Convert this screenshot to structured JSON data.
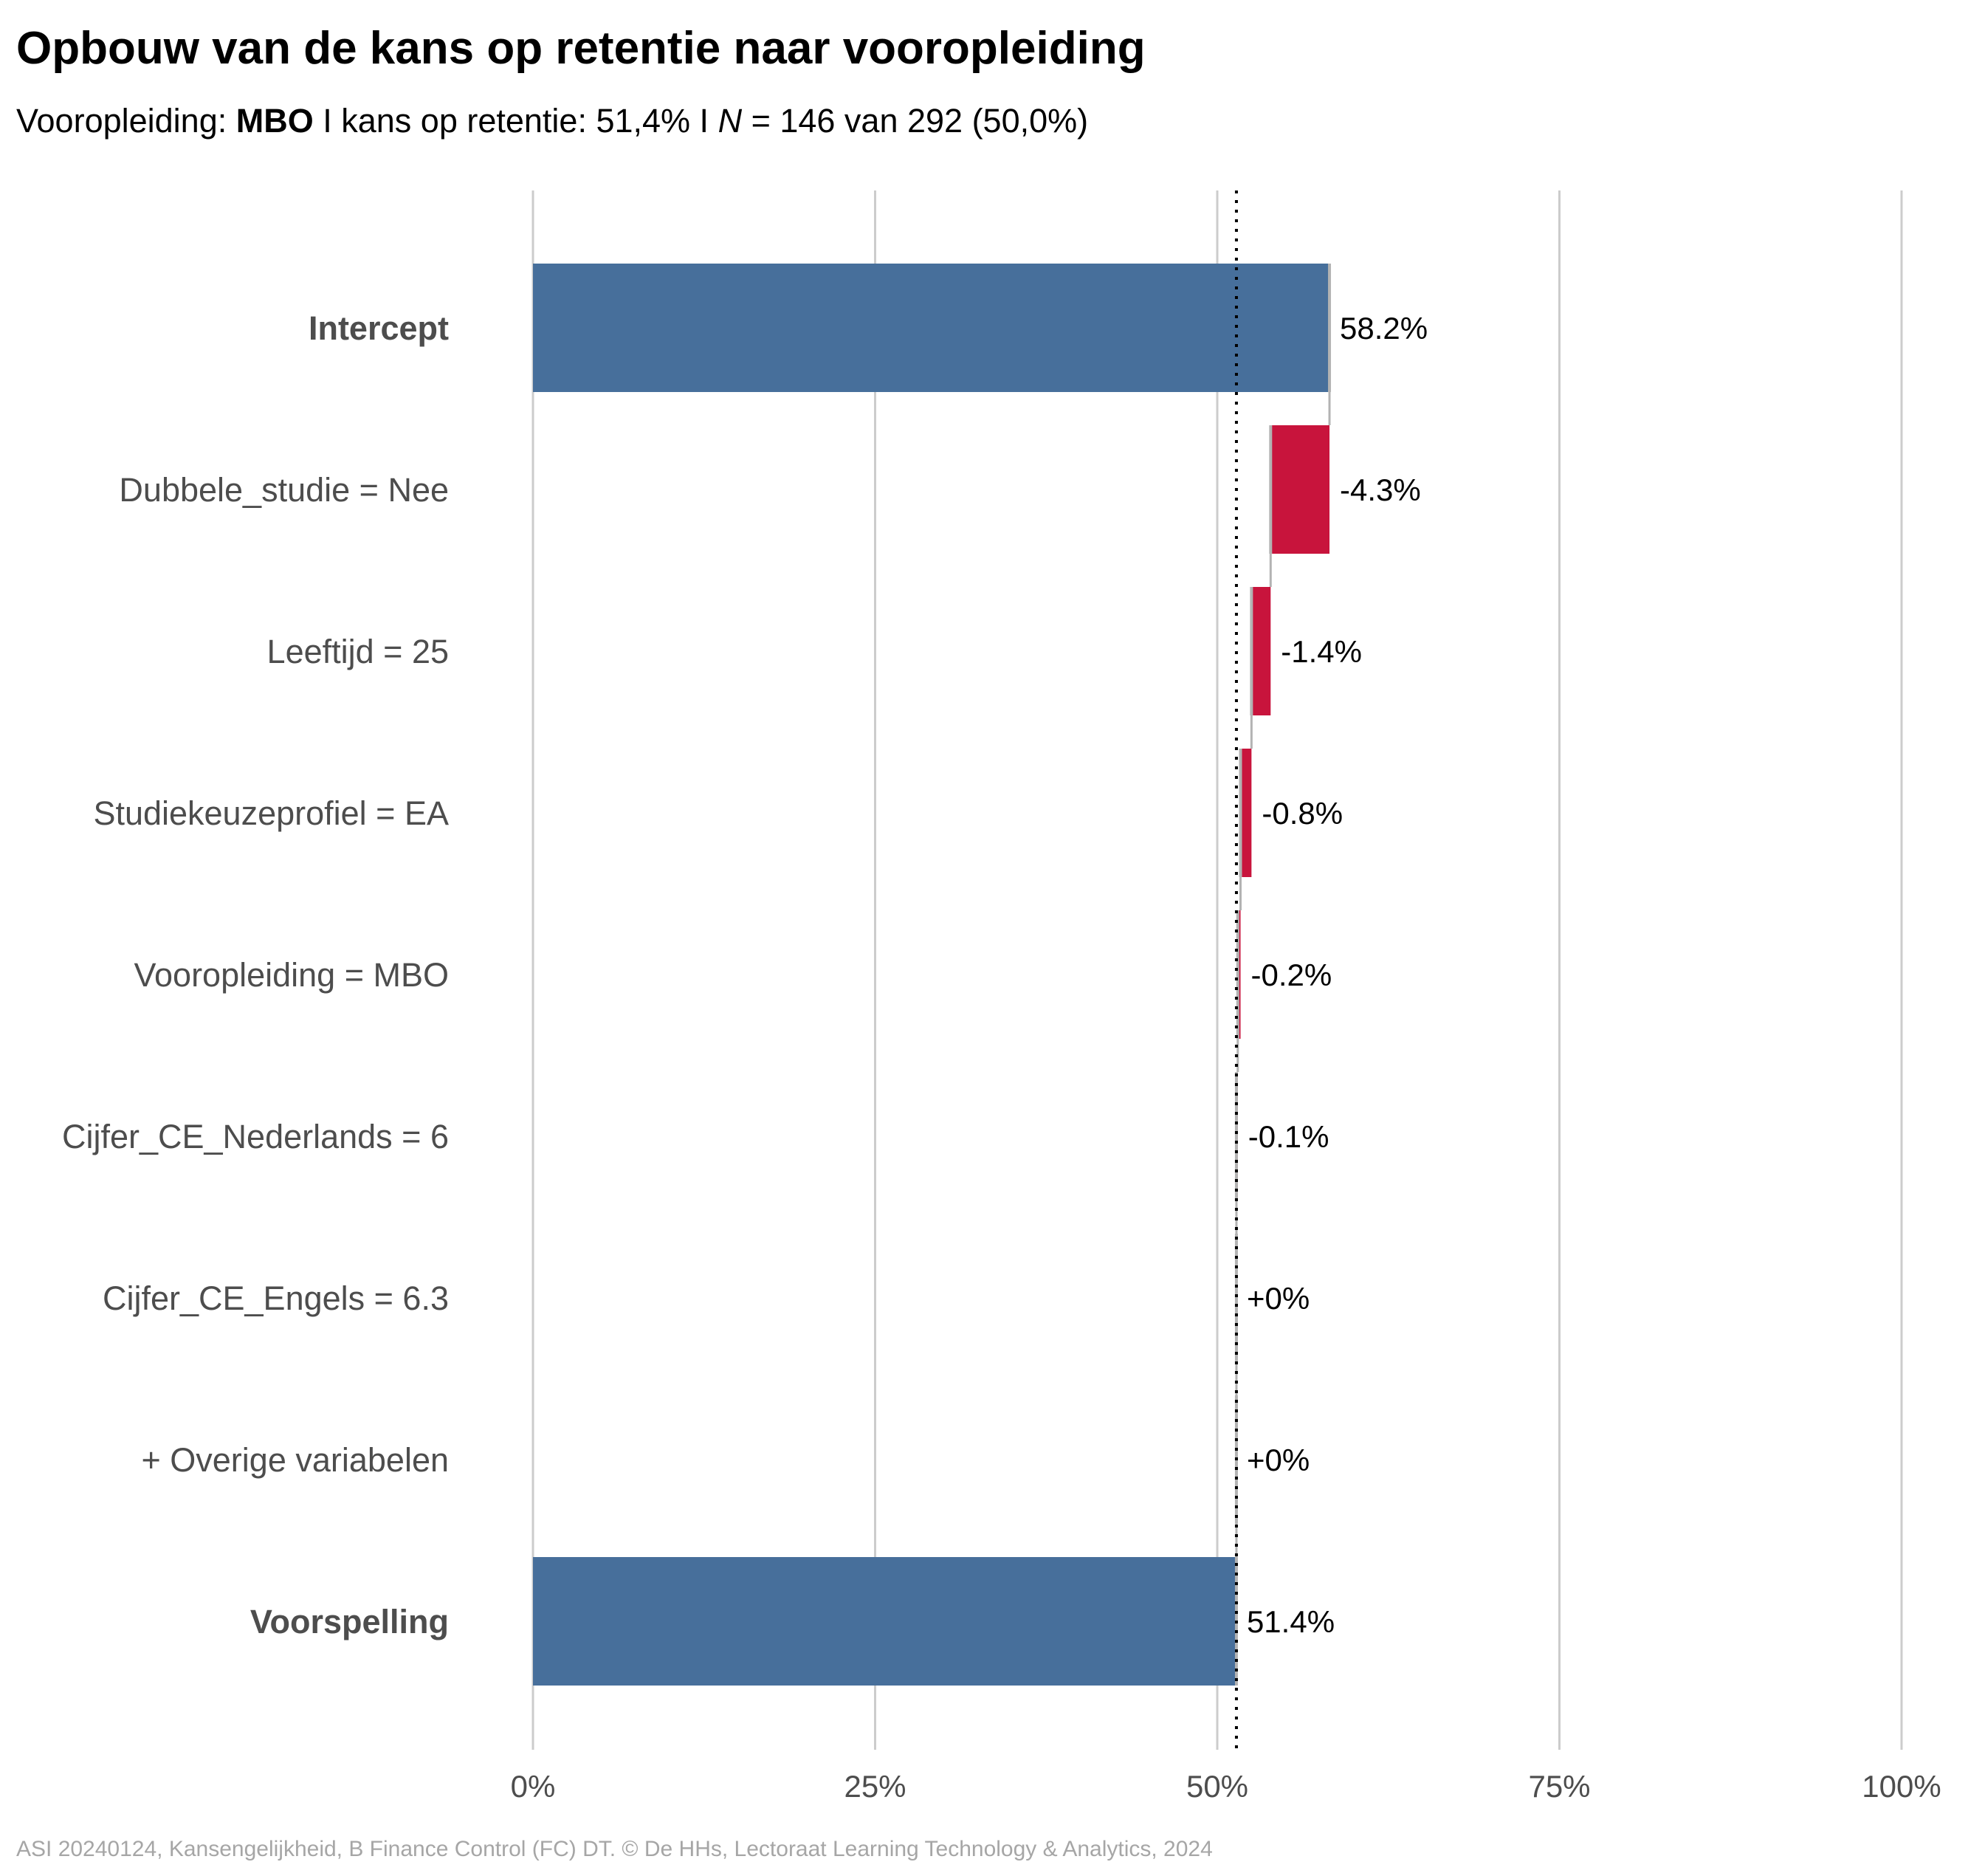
{
  "title": "Opbouw van de kans op retentie naar vooropleiding",
  "subtitle": {
    "prefix": "Vooropleiding: ",
    "group": "MBO",
    "middle": " I kans op retentie: 51,4% I ",
    "n_symbol": "N",
    "suffix": " = 146 van 292 (50,0%)"
  },
  "caption": "ASI 20240124, Kansengelijkheid, B Finance Control (FC) DT. © De HHs, Lectoraat Learning Technology & Analytics, 2024",
  "colors": {
    "base_bar": "#476f9b",
    "negative_bar": "#c8143c",
    "connector": "#b3b3b3",
    "gridline": "#cccccc",
    "reference_line": "#000000"
  },
  "chart_data": {
    "type": "bar",
    "orientation": "horizontal",
    "subtype": "waterfall",
    "xlim": [
      0,
      100
    ],
    "x_ticks": [
      0,
      25,
      50,
      75,
      100
    ],
    "x_tick_labels": [
      "0%",
      "25%",
      "50%",
      "75%",
      "100%"
    ],
    "reference_line": 51.4,
    "grid": true,
    "categories": [
      "Intercept",
      "Dubbele_studie = Nee",
      "Leeftijd = 25",
      "Studiekeuzeprofiel = EA",
      "Vooropleiding = MBO",
      "Cijfer_CE_Nederlands = 6",
      "Cijfer_CE_Engels = 6.3",
      "+ Overige variabelen",
      "Voorspelling"
    ],
    "bold_categories": [
      "Intercept",
      "Voorspelling"
    ],
    "bars": [
      {
        "kind": "total",
        "start": 0,
        "end": 58.2,
        "label": "58.2%"
      },
      {
        "kind": "delta",
        "start": 58.2,
        "end": 53.9,
        "label": "-4.3%"
      },
      {
        "kind": "delta",
        "start": 53.9,
        "end": 52.5,
        "label": "-1.4%"
      },
      {
        "kind": "delta",
        "start": 52.5,
        "end": 51.7,
        "label": "-0.8%"
      },
      {
        "kind": "delta",
        "start": 51.7,
        "end": 51.5,
        "label": "-0.2%"
      },
      {
        "kind": "delta",
        "start": 51.5,
        "end": 51.4,
        "label": "-0.1%"
      },
      {
        "kind": "delta",
        "start": 51.4,
        "end": 51.4,
        "label": "+0%"
      },
      {
        "kind": "delta",
        "start": 51.4,
        "end": 51.4,
        "label": "+0%"
      },
      {
        "kind": "total",
        "start": 0,
        "end": 51.4,
        "label": "51.4%"
      }
    ]
  }
}
